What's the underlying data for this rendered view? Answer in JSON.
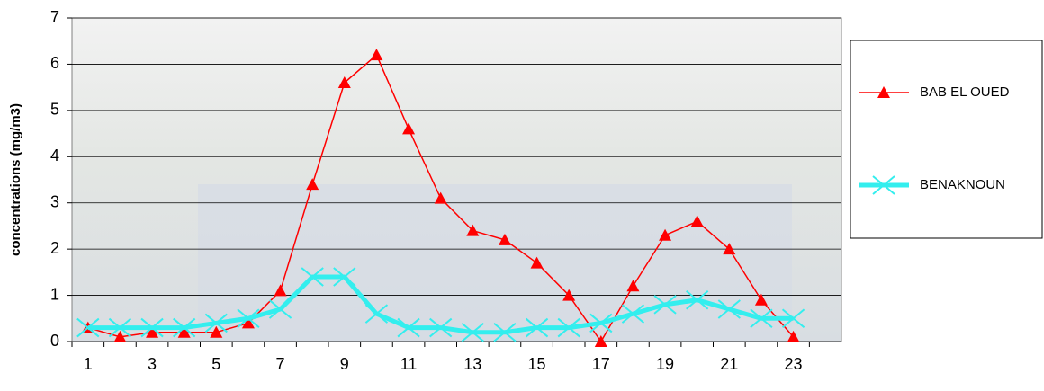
{
  "chart_data": {
    "type": "line",
    "y_label": "concentrations (mg/m3)",
    "categories": [
      1,
      null,
      3,
      null,
      5,
      null,
      7,
      null,
      9,
      null,
      11,
      null,
      13,
      null,
      15,
      null,
      17,
      null,
      19,
      null,
      21,
      null,
      23,
      null
    ],
    "series": [
      {
        "name": "BAB EL OUED",
        "color": "#ff0000",
        "marker": "triangle",
        "values": [
          0.3,
          0.1,
          0.2,
          0.2,
          0.2,
          0.4,
          1.1,
          3.4,
          5.6,
          6.2,
          4.6,
          3.1,
          2.4,
          2.2,
          1.7,
          1.0,
          0.0,
          1.2,
          2.3,
          2.6,
          2.0,
          0.9,
          0.1,
          null
        ]
      },
      {
        "name": "BENAKNOUN",
        "color": "#33eeee",
        "marker": "x",
        "values": [
          0.3,
          0.3,
          0.3,
          0.3,
          0.4,
          0.5,
          0.7,
          1.4,
          1.4,
          0.6,
          0.3,
          0.3,
          0.2,
          0.2,
          0.3,
          0.3,
          0.4,
          0.6,
          0.8,
          0.9,
          0.7,
          0.5,
          0.5,
          null
        ]
      }
    ],
    "ylim": [
      0,
      7
    ],
    "yticks": [
      0,
      1,
      2,
      3,
      4,
      5,
      6,
      7
    ],
    "grid": true,
    "legend": "right"
  }
}
